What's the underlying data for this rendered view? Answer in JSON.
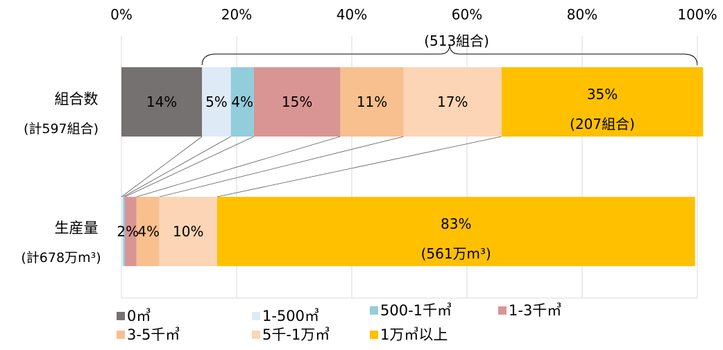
{
  "chart_data": {
    "type": "bar",
    "stacked": true,
    "orientation": "horizontal",
    "xlim": [
      0,
      100
    ],
    "x_ticks": [
      "0%",
      "20%",
      "40%",
      "60%",
      "80%",
      "100%"
    ],
    "grid": true,
    "legend_position": "bottom",
    "categories": [
      {
        "label": "組合数",
        "sublabel": "(計597組合)"
      },
      {
        "label": "生産量",
        "sublabel": "(計678万m³)"
      }
    ],
    "series": [
      {
        "name": "0㎥",
        "color": "#767171",
        "values": [
          14,
          0
        ]
      },
      {
        "name": "1-500㎥",
        "color": "#deebf7",
        "values": [
          5,
          0.3
        ]
      },
      {
        "name": "500-1千㎥",
        "color": "#92cddc",
        "values": [
          4,
          0.3
        ]
      },
      {
        "name": "1-3千㎥",
        "color": "#d99594",
        "values": [
          15,
          2
        ]
      },
      {
        "name": "3-5千㎥",
        "color": "#f8bf8f",
        "values": [
          11,
          4
        ]
      },
      {
        "name": "5千-1万㎥",
        "color": "#fbd5b5",
        "values": [
          17,
          10
        ]
      },
      {
        "name": "1万㎥以上",
        "color": "#ffc000",
        "values": [
          35,
          83
        ]
      }
    ],
    "segment_labels": [
      [
        "14%",
        "5%",
        "4%",
        "15%",
        "11%",
        "17%",
        "35%"
      ],
      [
        "",
        "",
        "",
        "2%",
        "4%",
        "10%",
        "83%"
      ]
    ],
    "segment_sublabels": {
      "row0_last": "(207組合)",
      "row1_last": "(561万m³)"
    },
    "brace_annotation": "(513組合)"
  }
}
